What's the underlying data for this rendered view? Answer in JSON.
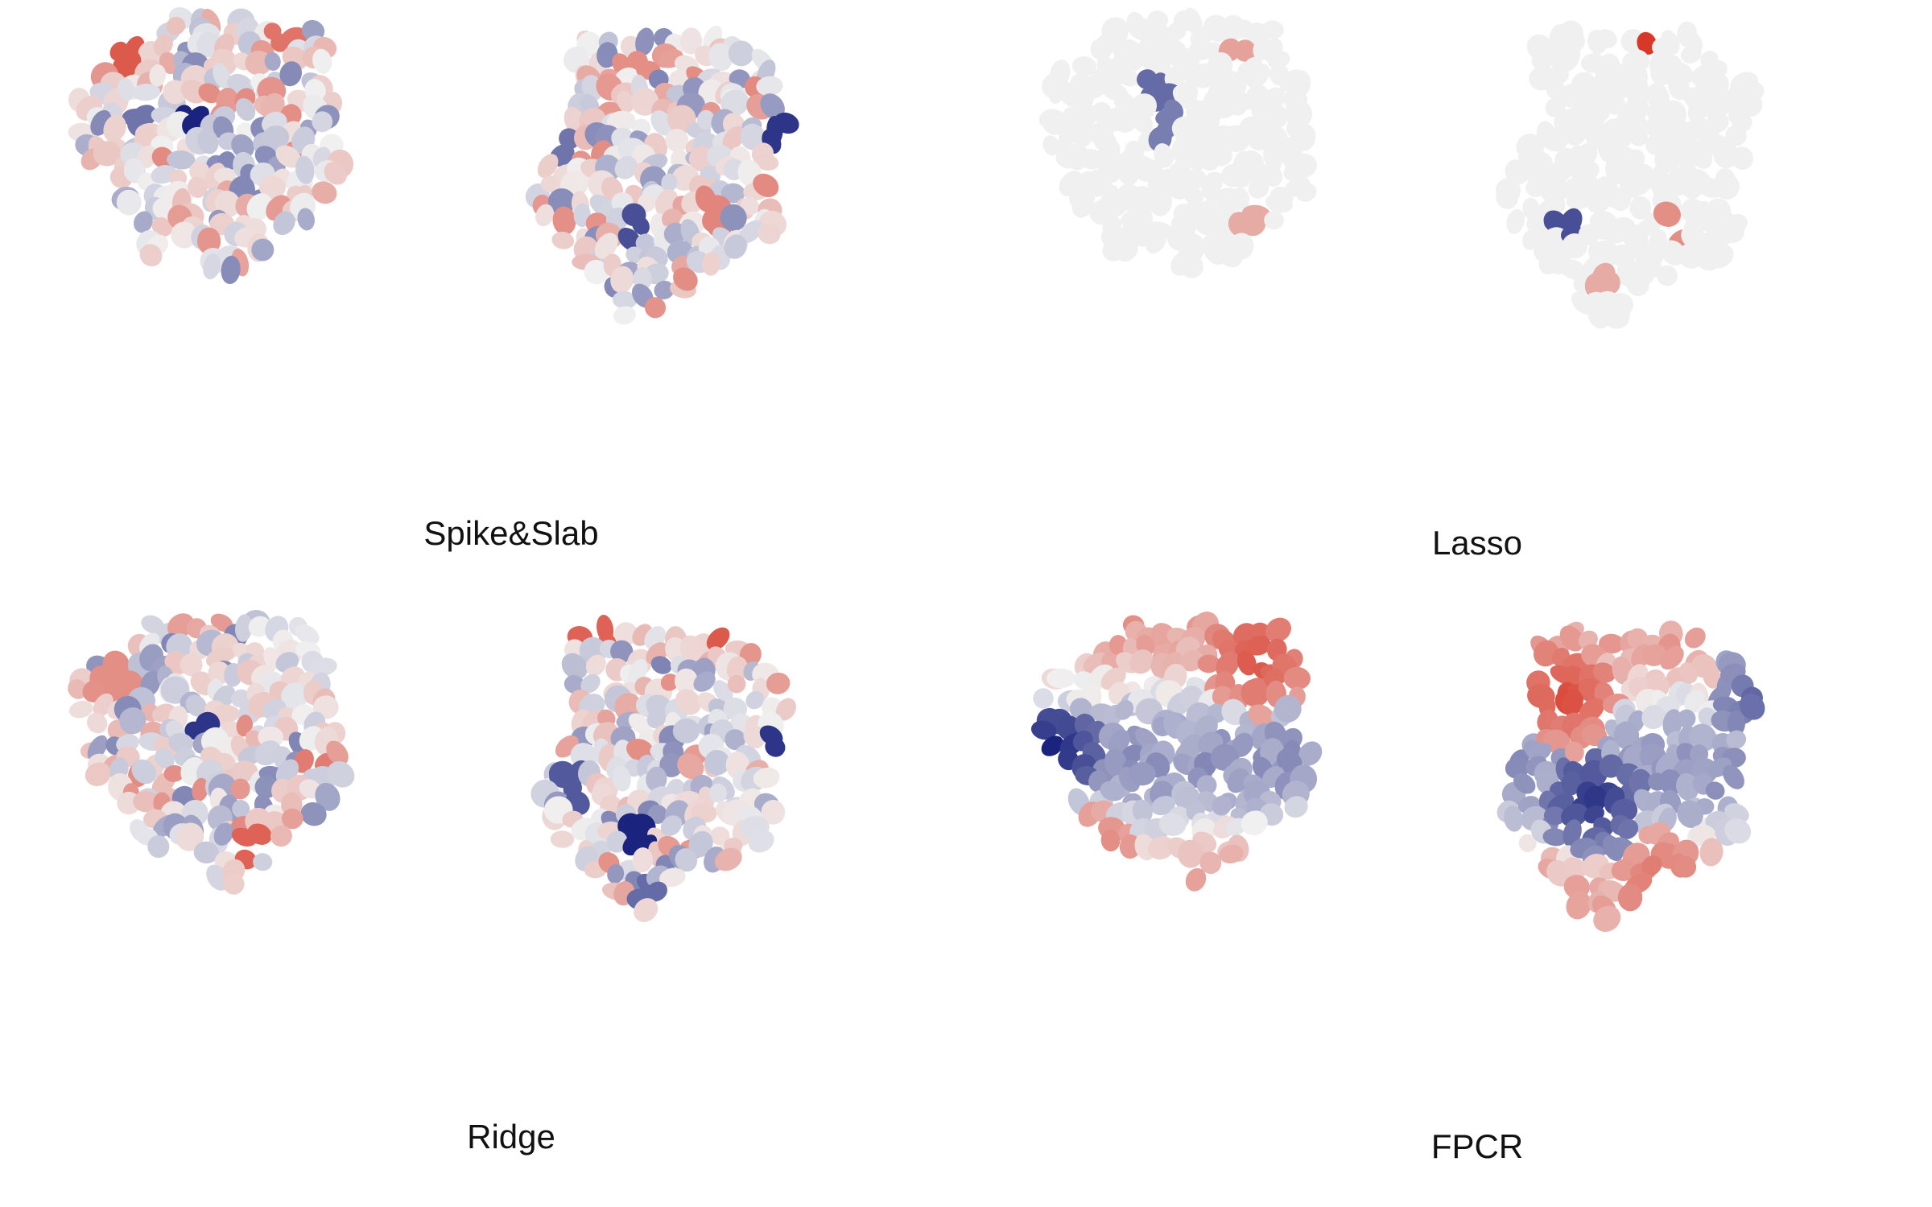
{
  "panels": [
    {
      "label": "Spike&Slab",
      "style": "diffuse",
      "seed": 11,
      "hot": [
        {
          "map": 0,
          "fx": 0.22,
          "fy": 0.16,
          "v": 0.75
        },
        {
          "map": 0,
          "fx": 0.78,
          "fy": 0.08,
          "v": 0.6
        },
        {
          "map": 0,
          "fx": 0.46,
          "fy": 0.34,
          "v": -1.0
        },
        {
          "map": 0,
          "fx": 0.25,
          "fy": 0.34,
          "v": -0.55
        },
        {
          "map": 0,
          "fx": 0.65,
          "fy": 0.58,
          "v": -0.45
        },
        {
          "map": 1,
          "fx": 0.13,
          "fy": 0.42,
          "v": -0.55
        },
        {
          "map": 1,
          "fx": 0.88,
          "fy": 0.35,
          "v": -0.9
        },
        {
          "map": 1,
          "fx": 0.38,
          "fy": 0.12,
          "v": 0.45
        },
        {
          "map": 1,
          "fx": 0.66,
          "fy": 0.62,
          "v": 0.5
        },
        {
          "map": 1,
          "fx": 0.37,
          "fy": 0.66,
          "v": -0.75
        }
      ]
    },
    {
      "label": "Lasso",
      "style": "sparse",
      "seed": 29,
      "hot": [
        {
          "map": 0,
          "fx": 0.72,
          "fy": 0.1,
          "v": 0.35
        },
        {
          "map": 0,
          "fx": 0.44,
          "fy": 0.25,
          "v": -0.6
        },
        {
          "map": 0,
          "fx": 0.46,
          "fy": 0.36,
          "v": -0.5
        },
        {
          "map": 0,
          "fx": 0.78,
          "fy": 0.68,
          "v": 0.3
        },
        {
          "map": 1,
          "fx": 0.05,
          "fy": 0.0,
          "v": 0.95
        },
        {
          "map": 1,
          "fx": 0.56,
          "fy": 0.0,
          "v": 0.95
        },
        {
          "map": 1,
          "fx": 0.92,
          "fy": 0.38,
          "v": -0.8
        },
        {
          "map": 1,
          "fx": 0.25,
          "fy": 0.65,
          "v": -0.75
        },
        {
          "map": 1,
          "fx": 0.63,
          "fy": 0.68,
          "v": 0.45
        },
        {
          "map": 1,
          "fx": 0.4,
          "fy": 0.86,
          "v": 0.3
        }
      ]
    },
    {
      "label": "Ridge",
      "style": "diffuse",
      "seed": 47,
      "hot": [
        {
          "map": 0,
          "fx": 0.45,
          "fy": 0.38,
          "v": -0.9
        },
        {
          "map": 0,
          "fx": 0.65,
          "fy": 0.78,
          "v": 0.7
        },
        {
          "map": 0,
          "fx": 0.88,
          "fy": 0.48,
          "v": 0.55
        },
        {
          "map": 0,
          "fx": 0.18,
          "fy": 0.22,
          "v": 0.45
        },
        {
          "map": 1,
          "fx": 0.88,
          "fy": 0.43,
          "v": -0.9
        },
        {
          "map": 1,
          "fx": 0.38,
          "fy": 0.72,
          "v": -1.0
        },
        {
          "map": 1,
          "fx": 0.23,
          "fy": 0.03,
          "v": 0.7
        },
        {
          "map": 1,
          "fx": 0.67,
          "fy": 0.0,
          "v": 0.75
        },
        {
          "map": 1,
          "fx": 0.45,
          "fy": 0.92,
          "v": -0.6
        },
        {
          "map": 1,
          "fx": 0.15,
          "fy": 0.55,
          "v": -0.7
        }
      ]
    },
    {
      "label": "FPCR",
      "style": "smooth",
      "seed": 83,
      "hot": [
        {
          "map": 0,
          "fx": 0.8,
          "fy": 0.15,
          "v": 0.75
        },
        {
          "map": 0,
          "fx": 0.05,
          "fy": 0.45,
          "v": -1.0
        },
        {
          "map": 0,
          "fx": 0.18,
          "fy": 0.8,
          "v": 0.65
        },
        {
          "map": 0,
          "fx": 0.2,
          "fy": 0.95,
          "v": -0.9
        },
        {
          "map": 1,
          "fx": 0.25,
          "fy": 0.25,
          "v": 0.85
        },
        {
          "map": 1,
          "fx": 0.35,
          "fy": 0.6,
          "v": -0.85
        },
        {
          "map": 1,
          "fx": 0.95,
          "fy": 0.2,
          "v": -0.7
        },
        {
          "map": 1,
          "fx": 0.6,
          "fy": 0.85,
          "v": 0.55
        }
      ]
    }
  ],
  "colors": {
    "negative_max": "#1a237e",
    "neutral": "#f0f0f0",
    "positive_max": "#d7301f"
  }
}
